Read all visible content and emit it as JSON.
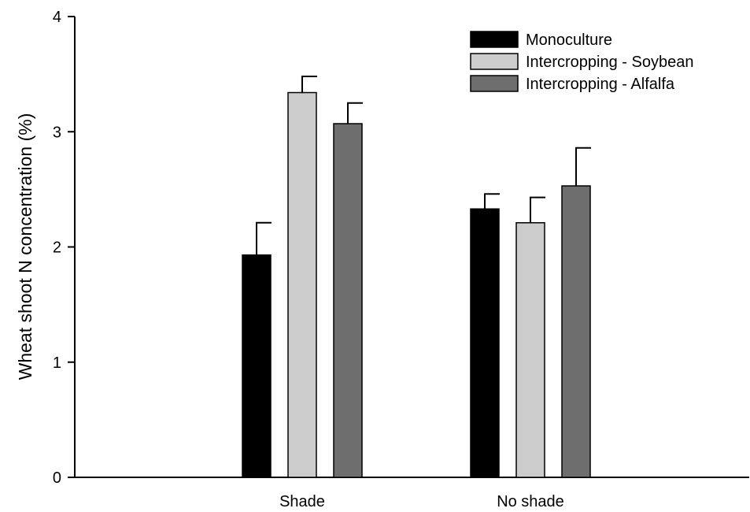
{
  "chart_data": {
    "type": "bar",
    "title": "",
    "xlabel": "",
    "ylabel": "Wheat shoot N concentration (%)",
    "ylim": [
      0,
      4
    ],
    "yticks": [
      0,
      1,
      2,
      3,
      4
    ],
    "categories": [
      "Shade",
      "No shade"
    ],
    "grid": false,
    "legend_position": "top-right",
    "series": [
      {
        "name": "Monoculture",
        "color": "#000000",
        "values": [
          1.93,
          2.33
        ],
        "errors": [
          0.28,
          0.13
        ]
      },
      {
        "name": "Intercropping - Soybean",
        "color": "#cccccc",
        "values": [
          3.34,
          2.21
        ],
        "errors": [
          0.14,
          0.22
        ]
      },
      {
        "name": "Intercropping - Alfalfa",
        "color": "#6e6e6e",
        "values": [
          3.07,
          2.53
        ],
        "errors": [
          0.18,
          0.33
        ]
      }
    ]
  }
}
